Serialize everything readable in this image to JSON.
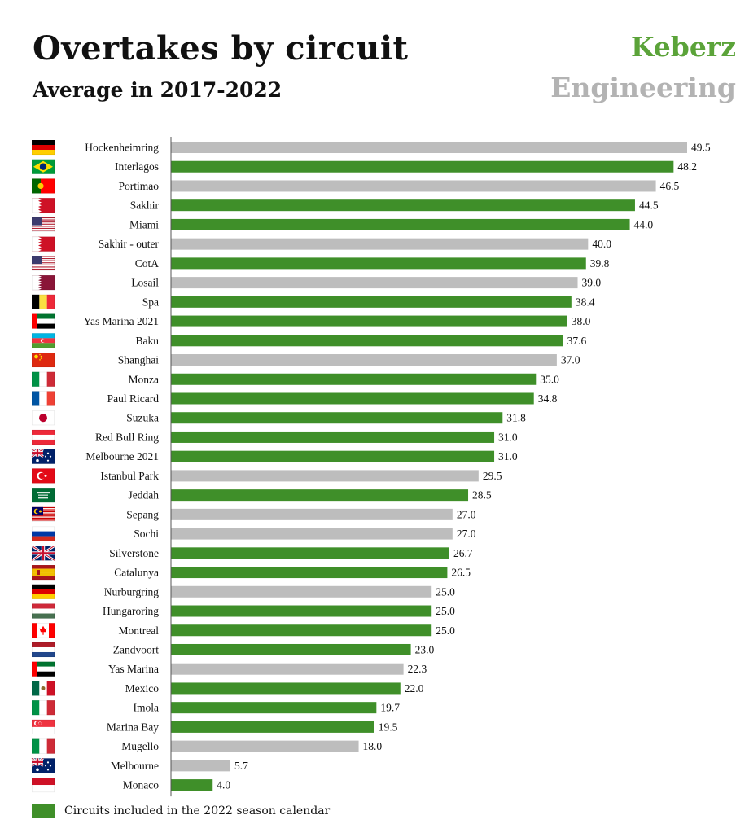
{
  "title": "Overtakes by circuit",
  "subtitle": "Average in 2017-2022",
  "brand": {
    "line1": "Keberz",
    "line2": "Engineering"
  },
  "colors": {
    "included": "#3f8f29",
    "other": "#bdbdbd",
    "brand_green": "#5ba339",
    "brand_gray": "#b3b3b3"
  },
  "legend": {
    "label": "Circuits included in the 2022 season calendar",
    "color": "#3f8f29"
  },
  "chart_data": {
    "type": "bar",
    "orientation": "horizontal",
    "title": "Overtakes by circuit",
    "subtitle": "Average in 2017-2022",
    "xlabel": "",
    "ylabel": "",
    "xlim": [
      0,
      49.5
    ],
    "grid": false,
    "legend_position": "bottom-left",
    "categories": [
      "Hockenheimring",
      "Interlagos",
      "Portimao",
      "Sakhir",
      "Miami",
      "Sakhir - outer",
      "CotA",
      "Losail",
      "Spa",
      "Yas Marina 2021",
      "Baku",
      "Shanghai",
      "Monza",
      "Paul Ricard",
      "Suzuka",
      "Red Bull Ring",
      "Melbourne 2021",
      "Istanbul Park",
      "Jeddah",
      "Sepang",
      "Sochi",
      "Silverstone",
      "Catalunya",
      "Nurburgring",
      "Hungaroring",
      "Montreal",
      "Zandvoort",
      "Yas Marina",
      "Mexico",
      "Imola",
      "Marina Bay",
      "Mugello",
      "Melbourne",
      "Monaco"
    ],
    "values": [
      49.5,
      48.2,
      46.5,
      44.5,
      44.0,
      40.0,
      39.8,
      39.0,
      38.4,
      38.0,
      37.6,
      37.0,
      35.0,
      34.8,
      31.8,
      31.0,
      31.0,
      29.5,
      28.5,
      27.0,
      27.0,
      26.7,
      26.5,
      25.0,
      25.0,
      25.0,
      23.0,
      22.3,
      22.0,
      19.7,
      19.5,
      18.0,
      5.7,
      4.0
    ],
    "value_labels": [
      "49.5",
      "48.2",
      "46.5",
      "44.5",
      "44.0",
      "40.0",
      "39.8",
      "39.0",
      "38.4",
      "38.0",
      "37.6",
      "37.0",
      "35.0",
      "34.8",
      "31.8",
      "31.0",
      "31.0",
      "29.5",
      "28.5",
      "27.0",
      "27.0",
      "26.7",
      "26.5",
      "25.0",
      "25.0",
      "25.0",
      "23.0",
      "22.3",
      "22.0",
      "19.7",
      "19.5",
      "18.0",
      "5.7",
      "4.0"
    ],
    "in_2022_calendar": [
      false,
      true,
      false,
      true,
      true,
      false,
      true,
      false,
      true,
      true,
      true,
      false,
      true,
      true,
      true,
      true,
      true,
      false,
      true,
      false,
      false,
      true,
      true,
      false,
      true,
      true,
      true,
      false,
      true,
      true,
      true,
      false,
      false,
      true
    ],
    "flags": [
      "germany-flag",
      "brazil-flag",
      "portugal-flag",
      "bahrain-flag",
      "usa-flag",
      "bahrain-flag",
      "usa-flag",
      "qatar-flag",
      "belgium-flag",
      "uae-flag",
      "azerbaijan-flag",
      "china-flag",
      "italy-flag",
      "france-flag",
      "japan-flag",
      "austria-flag",
      "australia-flag",
      "turkey-flag",
      "saudi-arabia-flag",
      "malaysia-flag",
      "russia-flag",
      "uk-flag",
      "spain-flag",
      "germany-flag",
      "hungary-flag",
      "canada-flag",
      "netherlands-flag",
      "uae-flag",
      "mexico-flag",
      "italy-flag",
      "singapore-flag",
      "italy-flag",
      "australia-flag",
      "monaco-flag"
    ]
  }
}
